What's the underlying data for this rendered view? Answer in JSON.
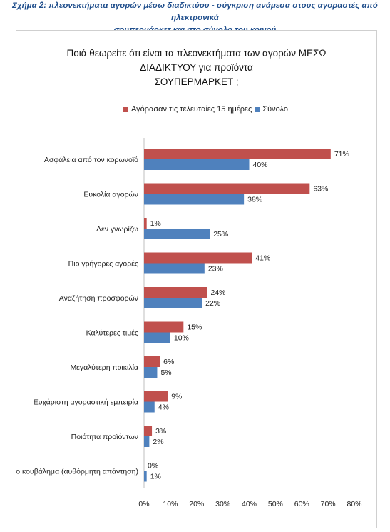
{
  "caption": {
    "line1": "Σχήμα 2: πλεονεκτήματα αγορών μέσω διαδικτύου - σύγκριση ανάμεσα στους αγοραστές από ηλεκτρονικά",
    "line2": "σουπερμάρκετ και στο σύνολο του κοινού"
  },
  "colors": {
    "series_recent": "#c0504d",
    "series_total": "#4f81bd",
    "caption": "#1f4e8c"
  },
  "chart_data": {
    "type": "bar",
    "orientation": "horizontal",
    "title_line1": "Ποιά θεωρείτε ότι είναι τα πλεονεκτήματα των αγορών ΜΕΣΩ ΔΙΑΔΙΚΤΥΟΥ για προϊόντα",
    "title_line2": "ΣΟΥΠΕΡΜΑΡΚΕΤ ;",
    "categories": [
      "Ασφάλεια από τον κορωνοϊό",
      "Ευκολία αγορών",
      "Δεν γνωρίζω",
      "Πιο γρήγορες αγορές",
      "Αναζήτηση προσφορών",
      "Καλύτερες τιμές",
      "Μεγαλύτερη ποικιλία",
      "Ευχάριστη αγοραστική εμπειρία",
      "Ποιότητα προϊόντων",
      "Γλιτώνω το κουβάλημα (αυθόρμητη απάντηση)"
    ],
    "series": [
      {
        "name": "Αγόρασαν τις τελευταίες 15 ημέρες",
        "values": [
          71,
          63,
          1,
          41,
          24,
          15,
          6,
          9,
          3,
          0
        ]
      },
      {
        "name": "Σύνολο",
        "values": [
          40,
          38,
          25,
          23,
          22,
          10,
          5,
          4,
          2,
          1
        ]
      }
    ],
    "xlim": [
      0,
      80
    ],
    "xticks": [
      "0%",
      "10%",
      "20%",
      "30%",
      "40%",
      "50%",
      "60%",
      "70%",
      "80%"
    ],
    "value_suffix": "%",
    "legend_position": "top",
    "grid": false
  }
}
